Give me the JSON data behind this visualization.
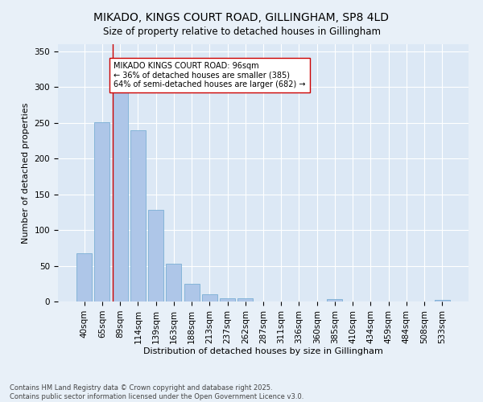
{
  "title": "MIKADO, KINGS COURT ROAD, GILLINGHAM, SP8 4LD",
  "subtitle": "Size of property relative to detached houses in Gillingham",
  "xlabel": "Distribution of detached houses by size in Gillingham",
  "ylabel": "Number of detached properties",
  "categories": [
    "40sqm",
    "65sqm",
    "89sqm",
    "114sqm",
    "139sqm",
    "163sqm",
    "188sqm",
    "213sqm",
    "237sqm",
    "262sqm",
    "287sqm",
    "311sqm",
    "336sqm",
    "360sqm",
    "385sqm",
    "410sqm",
    "434sqm",
    "459sqm",
    "484sqm",
    "508sqm",
    "533sqm"
  ],
  "values": [
    68,
    251,
    292,
    240,
    128,
    53,
    25,
    10,
    5,
    4,
    0,
    0,
    0,
    0,
    3,
    0,
    0,
    0,
    0,
    0,
    2
  ],
  "bar_color": "#aec6e8",
  "bar_edgecolor": "#7aafd4",
  "vline_x_index": 2,
  "vline_color": "#cc0000",
  "annotation_text": "MIKADO KINGS COURT ROAD: 96sqm\n← 36% of detached houses are smaller (385)\n64% of semi-detached houses are larger (682) →",
  "annotation_box_edgecolor": "#cc0000",
  "annotation_box_facecolor": "#ffffff",
  "ylim": [
    0,
    360
  ],
  "yticks": [
    0,
    50,
    100,
    150,
    200,
    250,
    300,
    350
  ],
  "footer_text": "Contains HM Land Registry data © Crown copyright and database right 2025.\nContains public sector information licensed under the Open Government Licence v3.0.",
  "title_fontsize": 10,
  "axis_label_fontsize": 8,
  "tick_fontsize": 7.5,
  "background_color": "#e8f0f8",
  "plot_background_color": "#dce8f5",
  "grid_color": "#ffffff"
}
